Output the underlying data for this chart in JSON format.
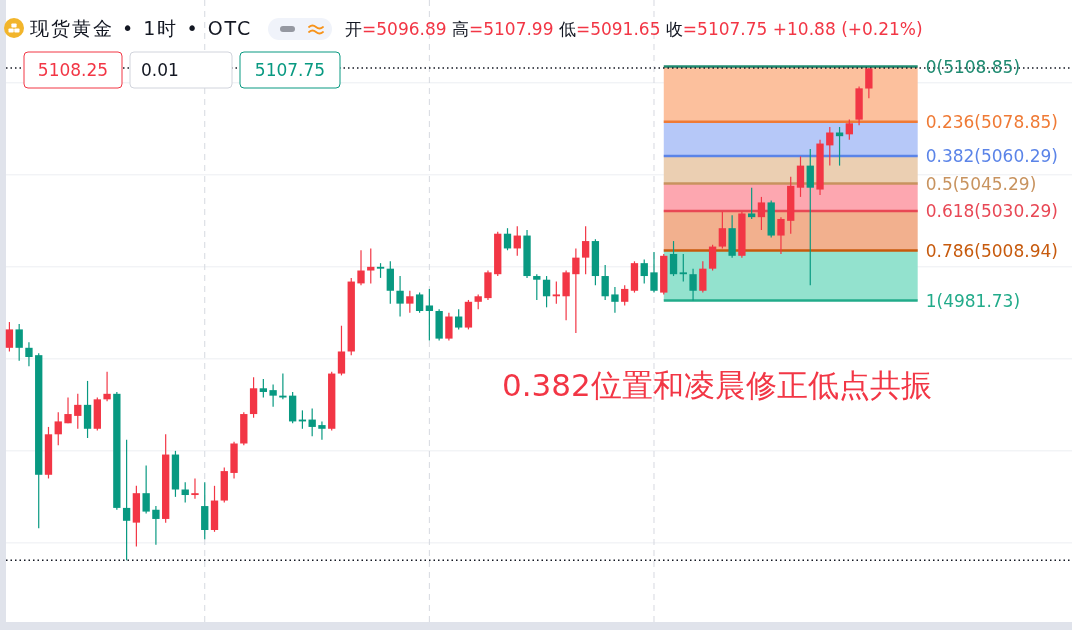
{
  "chart_data": {
    "type": "candlestick",
    "title": "现货黄金 • 1时 • OTC",
    "subtitle": "开=5096.89 高=5107.99 低=5091.65 收=5107.75 +10.88 (+0.21%)",
    "annotations": [
      "5108.25",
      "0.01",
      "5107.75",
      "0.382位置和凌晨修正低点共振"
    ],
    "categories": [
      null,
      null,
      null,
      null,
      null,
      null,
      null,
      null,
      null,
      null,
      null,
      null,
      null,
      null,
      null,
      null,
      null,
      null,
      null,
      null,
      null,
      null,
      null,
      null,
      null,
      null,
      null,
      null,
      null,
      null,
      null,
      null,
      null,
      null,
      null,
      null,
      null,
      null,
      null,
      null,
      null,
      null,
      null,
      null,
      null,
      null,
      null,
      null,
      null,
      null,
      null,
      null,
      null,
      null,
      null,
      null,
      null,
      null,
      null,
      null,
      null,
      null,
      null,
      null,
      null,
      null,
      null,
      null,
      null,
      null,
      null,
      null,
      null,
      null,
      null,
      null,
      null,
      null,
      null,
      null,
      null,
      null,
      null,
      null,
      null,
      null,
      null,
      null,
      null
    ],
    "ohlc": [
      [
        4956,
        4970,
        4954,
        4966
      ],
      [
        4966,
        4969,
        4949,
        4956
      ],
      [
        4956,
        4959,
        4946,
        4951
      ],
      [
        4952,
        4953,
        4858,
        4887
      ],
      [
        4887,
        4913,
        4885,
        4909
      ],
      [
        4909,
        4921,
        4903,
        4916
      ],
      [
        4915,
        4929,
        4915,
        4920
      ],
      [
        4919,
        4931,
        4912,
        4925
      ],
      [
        4925,
        4938,
        4907,
        4912
      ],
      [
        4912,
        4929,
        4911,
        4928
      ],
      [
        4928,
        4943,
        4927,
        4931
      ],
      [
        4931,
        4932,
        4868,
        4869
      ],
      [
        4869,
        4906,
        4840.5,
        4862
      ],
      [
        4861,
        4881,
        4848,
        4877
      ],
      [
        4877,
        4892,
        4866,
        4867
      ],
      [
        4868,
        4870,
        4849,
        4863
      ],
      [
        4863,
        4909,
        4861,
        4898
      ],
      [
        4898,
        4900,
        4875,
        4879
      ],
      [
        4879,
        4883,
        4872,
        4876
      ],
      [
        4876,
        4885,
        4874,
        4877
      ],
      [
        4870,
        4883,
        4852,
        4857
      ],
      [
        4857,
        4881,
        4856,
        4873
      ],
      [
        4873,
        4891,
        4872,
        4889
      ],
      [
        4888,
        4905,
        4885,
        4904
      ],
      [
        4904,
        4921,
        4903,
        4920
      ],
      [
        4920,
        4940,
        4918,
        4934
      ],
      [
        4934,
        4939,
        4929,
        4932
      ],
      [
        4933,
        4936,
        4924,
        4930
      ],
      [
        4930,
        4942,
        4928,
        4929
      ],
      [
        4930,
        4932,
        4915,
        4916
      ],
      [
        4917,
        4922,
        4912,
        4916
      ],
      [
        4917,
        4923,
        4908,
        4913
      ],
      [
        4914,
        4916,
        4906,
        4912
      ],
      [
        4912,
        4943,
        4911,
        4942
      ],
      [
        4942,
        4968,
        4941,
        4954
      ],
      [
        4954,
        4994,
        4952,
        4992
      ],
      [
        4991,
        5009,
        4990,
        4998
      ],
      [
        4998,
        5010,
        4991,
        5000
      ],
      [
        5000,
        5002,
        4994,
        4999
      ],
      [
        4999,
        5003,
        4980,
        4987
      ],
      [
        4987,
        4995,
        4973,
        4980
      ],
      [
        4980,
        4987,
        4975,
        4984
      ],
      [
        4985,
        4986,
        4975,
        4976
      ],
      [
        4979,
        4988,
        4960,
        4976
      ],
      [
        4976,
        4977,
        4960,
        4961
      ],
      [
        4961,
        4975,
        4960,
        4973
      ],
      [
        4973,
        4977,
        4966,
        4967
      ],
      [
        4967,
        4982,
        4966,
        4981
      ],
      [
        4981,
        4985,
        4977,
        4984
      ],
      [
        4983,
        4998,
        4982,
        4997
      ],
      [
        4996,
        5019,
        4995,
        5018
      ],
      [
        5018,
        5021,
        5009,
        5010
      ],
      [
        5010,
        5022,
        5006,
        5017
      ],
      [
        5017,
        5020,
        4994,
        4995
      ],
      [
        4995,
        4996,
        4982,
        4993
      ],
      [
        4993,
        4995,
        4978,
        4984
      ],
      [
        4984,
        4992,
        4980,
        4985
      ],
      [
        4984,
        4998,
        4971,
        4997
      ],
      [
        4996,
        5010,
        4964,
        5005
      ],
      [
        5005,
        5022,
        4996,
        5014
      ],
      [
        5014,
        5015,
        4990,
        4995
      ],
      [
        4995,
        5001,
        4982,
        4984
      ],
      [
        4985,
        4989,
        4975,
        4981
      ],
      [
        4981,
        4990,
        4979,
        4988
      ],
      [
        4987,
        5003,
        4986,
        5002
      ],
      [
        5002,
        5004,
        4991,
        4995
      ],
      [
        4997,
        5008,
        4986,
        4987
      ],
      [
        4986,
        5007,
        4985,
        5006
      ],
      [
        5007,
        5014,
        4995,
        4996
      ],
      [
        4997,
        5007,
        4992,
        4996
      ],
      [
        4996,
        4999,
        4981.73,
        4987
      ],
      [
        4987,
        5003,
        4986,
        4999
      ],
      [
        4999,
        5012,
        4998,
        5011
      ],
      [
        5011,
        5030,
        5010,
        5021
      ],
      [
        5021,
        5028,
        5005,
        5006
      ],
      [
        5006,
        5030,
        5005,
        5029
      ],
      [
        5029,
        5043,
        5026,
        5027
      ],
      [
        5027,
        5038,
        5020,
        5035
      ],
      [
        5035,
        5036,
        5016,
        5017
      ],
      [
        5017,
        5027,
        5007,
        5026
      ],
      [
        5025,
        5049,
        5018,
        5044
      ],
      [
        5043,
        5060,
        5038,
        5055
      ],
      [
        5055,
        5064,
        4990,
        5043
      ],
      [
        5042,
        5069,
        5039,
        5067
      ],
      [
        5066,
        5076,
        5055,
        5073
      ],
      [
        5073,
        5076,
        5055,
        5071
      ],
      [
        5072,
        5080,
        5069,
        5078
      ],
      [
        5080,
        5098,
        5077,
        5097
      ],
      [
        5096.89,
        5107.99,
        5091.65,
        5107.75
      ]
    ],
    "colors": [
      "#f23645",
      "#089981",
      "#089981",
      "#089981",
      "#f23645",
      "#f23645",
      "#f23645",
      "#f23645",
      "#089981",
      "#f23645",
      "#f23645",
      "#089981",
      "#089981",
      "#f23645",
      "#089981",
      "#089981",
      "#f23645",
      "#089981",
      "#089981",
      "#f23645",
      "#089981",
      "#f23645",
      "#f23645",
      "#f23645",
      "#f23645",
      "#f23645",
      "#089981",
      "#089981",
      "#089981",
      "#089981",
      "#089981",
      "#089981",
      "#089981",
      "#f23645",
      "#f23645",
      "#f23645",
      "#f23645",
      "#f23645",
      "#089981",
      "#089981",
      "#089981",
      "#f23645",
      "#089981",
      "#089981",
      "#089981",
      "#f23645",
      "#089981",
      "#f23645",
      "#f23645",
      "#f23645",
      "#f23645",
      "#089981",
      "#f23645",
      "#089981",
      "#089981",
      "#089981",
      "#f23645",
      "#f23645",
      "#f23645",
      "#f23645",
      "#089981",
      "#089981",
      "#089981",
      "#f23645",
      "#f23645",
      "#089981",
      "#089981",
      "#f23645",
      "#089981",
      "#089981",
      "#089981",
      "#f23645",
      "#f23645",
      "#f23645",
      "#089981",
      "#f23645",
      "#089981",
      "#f23645",
      "#089981",
      "#f23645",
      "#f23645",
      "#f23645",
      "#089981",
      "#f23645",
      "#f23645",
      "#089981",
      "#f23645",
      "#f23645",
      "#f23645"
    ],
    "ylim": [
      4807,
      5145
    ],
    "yticks": [
      {
        "value": 4850,
        "label": null
      },
      {
        "value": 4900,
        "label": null
      },
      {
        "value": 4950,
        "label": null
      },
      {
        "value": 5000,
        "label": null
      },
      {
        "value": 5050,
        "label": null
      },
      {
        "value": 5100,
        "label": null
      }
    ],
    "grid": true,
    "bands": [
      {
        "axis": "y",
        "from": 5078.85,
        "to": 5108.85,
        "color": "#fcc09d"
      },
      {
        "axis": "y",
        "from": 5060.29,
        "to": 5078.85,
        "color": "#b6c8f8"
      },
      {
        "axis": "y",
        "from": 5045.29,
        "to": 5060.29,
        "color": "#ebcfb2"
      },
      {
        "axis": "y",
        "from": 5030.29,
        "to": 5045.29,
        "color": "#fda7b0"
      },
      {
        "axis": "y",
        "from": 5008.94,
        "to": 5030.29,
        "color": "#f2b08e"
      },
      {
        "axis": "y",
        "from": 4981.73,
        "to": 5008.94,
        "color": "#93e2ce"
      }
    ],
    "ref_lines": [
      {
        "axis": "y",
        "value": 5108.85,
        "label": "0(5108.85)",
        "color": "#1e8a70"
      },
      {
        "axis": "y",
        "value": 5078.85,
        "label": "0.236(5078.85)",
        "color": "#ef7a35"
      },
      {
        "axis": "y",
        "value": 5060.29,
        "label": "0.382(5060.29)",
        "color": "#5b84e8"
      },
      {
        "axis": "y",
        "value": 5045.29,
        "label": "0.5(5045.29)",
        "color": "#c8935f"
      },
      {
        "axis": "y",
        "value": 5030.29,
        "label": "0.618(5030.29)",
        "color": "#e84855"
      },
      {
        "axis": "y",
        "value": 5008.94,
        "label": "0.786(5008.94)",
        "color": "#c75a0d"
      },
      {
        "axis": "y",
        "value": 4981.73,
        "label": "1(4981.73)",
        "color": "#22ab8a"
      },
      {
        "axis": "y",
        "value": 5108,
        "color": "#131722",
        "line_style": "dotted"
      },
      {
        "axis": "y",
        "value": 4840.5,
        "color": "#131722",
        "line_style": "dotted"
      }
    ]
  }
}
